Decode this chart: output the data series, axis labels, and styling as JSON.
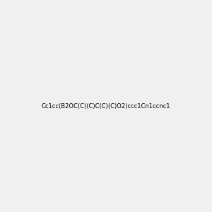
{
  "smiles": "Cc1cc(B2OC(C)(C)C(C)(C)O2)ccc1Cn1ccnc1",
  "background_color": "#f0f0f0",
  "figsize": [
    3.0,
    3.0
  ],
  "dpi": 100,
  "title": "",
  "atom_colors": {
    "B": "#00cc00",
    "O": "#ff0000",
    "N": "#0000ff",
    "C": "#000000"
  }
}
